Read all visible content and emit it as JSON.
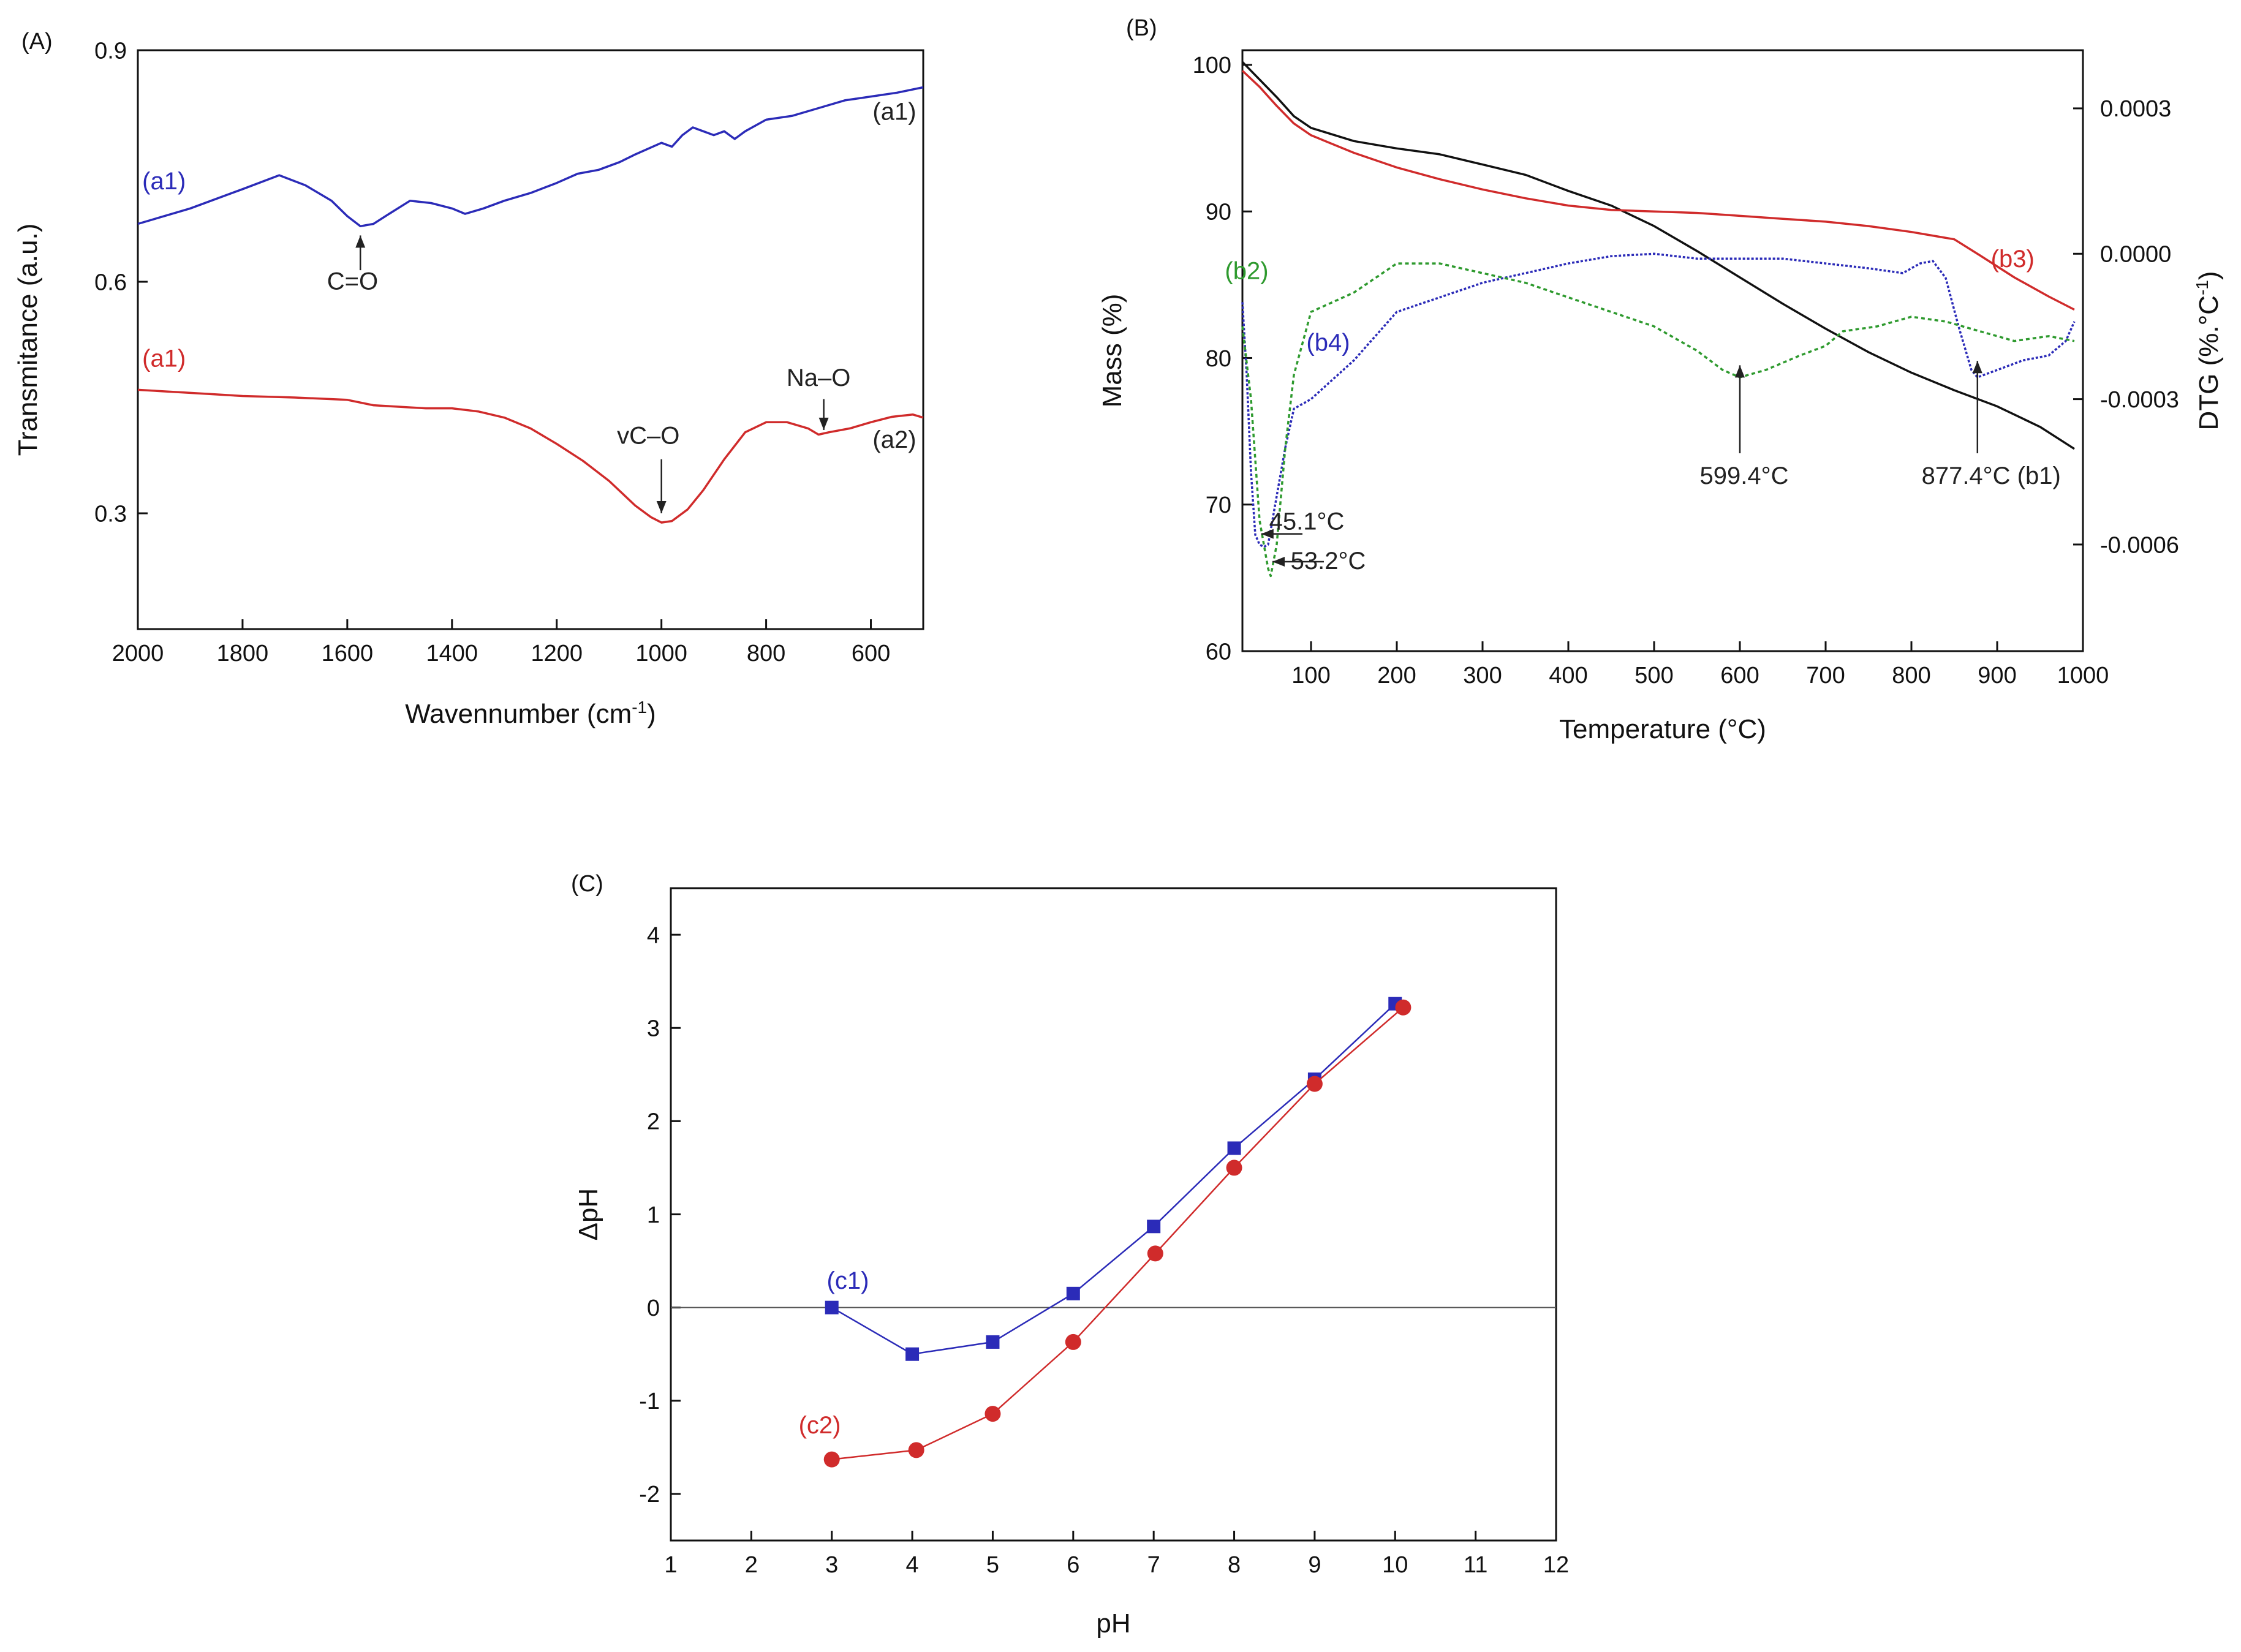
{
  "chart_data": [
    {
      "panel": "(A)",
      "type": "line",
      "title": "",
      "xlabel": "Wavennumber (cm",
      "xlabel_sup": "-1",
      "xlabel_end": ")",
      "ylabel": "Transmitance (a.u.)",
      "xlim": [
        2000,
        500
      ],
      "ylim": [
        0.15,
        0.9
      ],
      "xticks": [
        2000,
        1800,
        1600,
        1400,
        1200,
        1000,
        800,
        600
      ],
      "yticks": [
        0.3,
        0.6,
        0.9
      ],
      "ytick_labels": [
        "0.3",
        "0.6",
        "0.9"
      ],
      "grid": false,
      "series": [
        {
          "name": "a1-blue",
          "color": "#2b2bb8",
          "points": [
            [
              2000,
              0.675
            ],
            [
              1900,
              0.695
            ],
            [
              1800,
              0.72
            ],
            [
              1730,
              0.738
            ],
            [
              1680,
              0.725
            ],
            [
              1630,
              0.705
            ],
            [
              1600,
              0.685
            ],
            [
              1575,
              0.672
            ],
            [
              1550,
              0.675
            ],
            [
              1520,
              0.688
            ],
            [
              1480,
              0.705
            ],
            [
              1440,
              0.702
            ],
            [
              1400,
              0.695
            ],
            [
              1375,
              0.688
            ],
            [
              1340,
              0.695
            ],
            [
              1300,
              0.705
            ],
            [
              1250,
              0.715
            ],
            [
              1200,
              0.728
            ],
            [
              1160,
              0.74
            ],
            [
              1120,
              0.745
            ],
            [
              1080,
              0.755
            ],
            [
              1050,
              0.765
            ],
            [
              1000,
              0.78
            ],
            [
              980,
              0.775
            ],
            [
              960,
              0.79
            ],
            [
              940,
              0.8
            ],
            [
              920,
              0.795
            ],
            [
              900,
              0.79
            ],
            [
              880,
              0.795
            ],
            [
              860,
              0.785
            ],
            [
              840,
              0.795
            ],
            [
              800,
              0.81
            ],
            [
              750,
              0.815
            ],
            [
              700,
              0.825
            ],
            [
              650,
              0.835
            ],
            [
              600,
              0.84
            ],
            [
              550,
              0.845
            ],
            [
              500,
              0.852
            ]
          ]
        },
        {
          "name": "a2-red",
          "color": "#d02b2b",
          "points": [
            [
              2000,
              0.46
            ],
            [
              1900,
              0.456
            ],
            [
              1800,
              0.452
            ],
            [
              1700,
              0.45
            ],
            [
              1600,
              0.447
            ],
            [
              1550,
              0.44
            ],
            [
              1500,
              0.438
            ],
            [
              1450,
              0.436
            ],
            [
              1400,
              0.436
            ],
            [
              1350,
              0.432
            ],
            [
              1300,
              0.424
            ],
            [
              1250,
              0.41
            ],
            [
              1200,
              0.39
            ],
            [
              1150,
              0.368
            ],
            [
              1100,
              0.342
            ],
            [
              1050,
              0.31
            ],
            [
              1020,
              0.295
            ],
            [
              1000,
              0.288
            ],
            [
              980,
              0.29
            ],
            [
              950,
              0.305
            ],
            [
              920,
              0.33
            ],
            [
              880,
              0.37
            ],
            [
              840,
              0.405
            ],
            [
              800,
              0.418
            ],
            [
              760,
              0.418
            ],
            [
              720,
              0.41
            ],
            [
              700,
              0.402
            ],
            [
              680,
              0.405
            ],
            [
              640,
              0.41
            ],
            [
              600,
              0.418
            ],
            [
              560,
              0.425
            ],
            [
              520,
              0.428
            ],
            [
              500,
              0.424
            ]
          ]
        }
      ],
      "annotations": [
        {
          "id": "a1-blue-left",
          "text": "(a1)",
          "color": "#2b2bb8",
          "x": 1950,
          "y": 0.72
        },
        {
          "id": "a1-blue-right",
          "text": "(a1)",
          "color": "#222222",
          "x": 555,
          "y": 0.81
        },
        {
          "id": "a1-red-left",
          "text": "(a1)",
          "color": "#d02b2b",
          "x": 1950,
          "y": 0.49
        },
        {
          "id": "a2-red-right",
          "text": "(a2)",
          "color": "#222222",
          "x": 555,
          "y": 0.385
        },
        {
          "id": "c-o",
          "text": "C=O",
          "color": "#222222",
          "x": 1590,
          "y": 0.59
        },
        {
          "id": "vc-o",
          "text": "vC–O",
          "color": "#222222",
          "x": 1025,
          "y": 0.39
        },
        {
          "id": "na-o",
          "text": "Na–O",
          "color": "#222222",
          "x": 700,
          "y": 0.465
        }
      ],
      "arrows": [
        {
          "id": "arrow-c-o",
          "x": 1575,
          "y_from": 0.615,
          "y_to": 0.66
        },
        {
          "id": "arrow-vc-o",
          "x": 1000,
          "y_from": 0.37,
          "y_to": 0.3
        },
        {
          "id": "arrow-na-o",
          "x": 690,
          "y_from": 0.448,
          "y_to": 0.408
        }
      ]
    },
    {
      "panel": "(B)",
      "type": "line",
      "title": "",
      "xlabel": "Temperature (°C)",
      "ylabel": "Mass (%)",
      "y2label": "DTG (%.°C",
      "y2label_sup": "-1",
      "y2label_end": ")",
      "xlim": [
        20,
        1000
      ],
      "ylim": [
        60,
        101
      ],
      "y2lim": [
        -0.00082,
        0.00042
      ],
      "xticks": [
        100,
        200,
        300,
        400,
        500,
        600,
        700,
        800,
        900,
        1000
      ],
      "yticks": [
        60,
        70,
        80,
        90,
        100
      ],
      "y2ticks": [
        -0.0006,
        -0.0003,
        0.0,
        0.0003
      ],
      "y2tick_labels": [
        "-0.0006",
        "-0.0003",
        "0.0000",
        "0.0003"
      ],
      "grid": false,
      "series": [
        {
          "name": "b1-mass-black",
          "axis": "left",
          "color": "#111111",
          "dash": "",
          "points": [
            [
              20,
              100.2
            ],
            [
              40,
              99
            ],
            [
              60,
              97.8
            ],
            [
              80,
              96.5
            ],
            [
              100,
              95.7
            ],
            [
              150,
              94.8
            ],
            [
              200,
              94.3
            ],
            [
              250,
              93.9
            ],
            [
              300,
              93.2
            ],
            [
              350,
              92.5
            ],
            [
              400,
              91.4
            ],
            [
              450,
              90.4
            ],
            [
              500,
              89.0
            ],
            [
              550,
              87.3
            ],
            [
              600,
              85.5
            ],
            [
              650,
              83.7
            ],
            [
              700,
              82.0
            ],
            [
              750,
              80.4
            ],
            [
              800,
              79.0
            ],
            [
              850,
              77.8
            ],
            [
              900,
              76.7
            ],
            [
              950,
              75.3
            ],
            [
              990,
              73.8
            ]
          ]
        },
        {
          "name": "b3-mass-red",
          "axis": "left",
          "color": "#d02b2b",
          "dash": "",
          "points": [
            [
              20,
              99.6
            ],
            [
              40,
              98.5
            ],
            [
              60,
              97.2
            ],
            [
              80,
              96.0
            ],
            [
              100,
              95.2
            ],
            [
              150,
              94.0
            ],
            [
              200,
              93.0
            ],
            [
              250,
              92.2
            ],
            [
              300,
              91.5
            ],
            [
              350,
              90.9
            ],
            [
              400,
              90.4
            ],
            [
              450,
              90.1
            ],
            [
              500,
              90.0
            ],
            [
              550,
              89.9
            ],
            [
              600,
              89.7
            ],
            [
              650,
              89.5
            ],
            [
              700,
              89.3
            ],
            [
              750,
              89.0
            ],
            [
              800,
              88.6
            ],
            [
              850,
              88.1
            ],
            [
              880,
              87.0
            ],
            [
              920,
              85.5
            ],
            [
              960,
              84.2
            ],
            [
              990,
              83.3
            ]
          ]
        },
        {
          "name": "b4-dtg-blue",
          "axis": "right",
          "color": "#2b2bb8",
          "dash": "4,3",
          "points": [
            [
              20,
              -0.0001
            ],
            [
              25,
              -0.00025
            ],
            [
              30,
              -0.00045
            ],
            [
              35,
              -0.00058
            ],
            [
              40,
              -0.0006
            ],
            [
              45,
              -0.000605
            ],
            [
              50,
              -0.0006
            ],
            [
              60,
              -0.0005
            ],
            [
              70,
              -0.0004
            ],
            [
              80,
              -0.00032
            ],
            [
              100,
              -0.0003
            ],
            [
              150,
              -0.00022
            ],
            [
              200,
              -0.00012
            ],
            [
              250,
              -9e-05
            ],
            [
              300,
              -6e-05
            ],
            [
              350,
              -4e-05
            ],
            [
              400,
              -2e-05
            ],
            [
              450,
              -5e-06
            ],
            [
              500,
              0.0
            ],
            [
              550,
              -1e-05
            ],
            [
              600,
              -1e-05
            ],
            [
              650,
              -1e-05
            ],
            [
              700,
              -2e-05
            ],
            [
              750,
              -3e-05
            ],
            [
              790,
              -4e-05
            ],
            [
              810,
              -2e-05
            ],
            [
              825,
              -1.5e-05
            ],
            [
              840,
              -5e-05
            ],
            [
              855,
              -0.00015
            ],
            [
              870,
              -0.00024
            ],
            [
              877,
              -0.000255
            ],
            [
              900,
              -0.00024
            ],
            [
              930,
              -0.00022
            ],
            [
              960,
              -0.00021
            ],
            [
              980,
              -0.00018
            ],
            [
              990,
              -0.00014
            ]
          ]
        },
        {
          "name": "b2-dtg-green",
          "axis": "right",
          "color": "#2e9a2e",
          "dash": "6,5",
          "points": [
            [
              20,
              -0.00015
            ],
            [
              30,
              -0.0003
            ],
            [
              40,
              -0.00055
            ],
            [
              50,
              -0.00065
            ],
            [
              53,
              -0.000665
            ],
            [
              60,
              -0.0006
            ],
            [
              70,
              -0.0004
            ],
            [
              80,
              -0.00025
            ],
            [
              100,
              -0.00012
            ],
            [
              150,
              -8e-05
            ],
            [
              200,
              -2e-05
            ],
            [
              250,
              -2e-05
            ],
            [
              300,
              -4e-05
            ],
            [
              350,
              -6e-05
            ],
            [
              400,
              -9e-05
            ],
            [
              450,
              -0.00012
            ],
            [
              500,
              -0.00015
            ],
            [
              550,
              -0.0002
            ],
            [
              580,
              -0.00024
            ],
            [
              600,
              -0.000255
            ],
            [
              630,
              -0.00024
            ],
            [
              670,
              -0.00021
            ],
            [
              700,
              -0.00019
            ],
            [
              720,
              -0.00016
            ],
            [
              760,
              -0.00015
            ],
            [
              800,
              -0.00013
            ],
            [
              840,
              -0.00014
            ],
            [
              880,
              -0.00016
            ],
            [
              920,
              -0.00018
            ],
            [
              960,
              -0.00017
            ],
            [
              990,
              -0.00018
            ]
          ]
        }
      ],
      "annotations": [
        {
          "id": "b2-label",
          "text": "(b2)",
          "color": "#2e9a2e",
          "x": 25,
          "y": 85.4
        },
        {
          "id": "b4-label",
          "text": "(b4)",
          "color": "#2b2bb8",
          "x": 120,
          "y": 80.5
        },
        {
          "id": "b3-label",
          "text": "(b3)",
          "color": "#d02b2b",
          "x": 918,
          "y": 86.2
        },
        {
          "id": "t-45",
          "text": "45.1°C",
          "color": "#222222",
          "x": 95,
          "y": 68.3
        },
        {
          "id": "t-53",
          "text": "53.2°C",
          "color": "#222222",
          "x": 120,
          "y": 65.6
        },
        {
          "id": "t-599",
          "text": "599.4°C",
          "color": "#222222",
          "x": 605,
          "y": 71.4
        },
        {
          "id": "t-877",
          "text": "877.4°C  (b1)",
          "color": "#222222",
          "x": 893,
          "y": 71.4
        }
      ],
      "arrows": [
        {
          "id": "arrow-599",
          "x": 600,
          "y_from": 73.5,
          "y_to": 79.5
        },
        {
          "id": "arrow-877",
          "x": 877,
          "y_from": 73.5,
          "y_to": 79.8
        },
        {
          "id": "arrow-45",
          "x_from": 90,
          "x_to": 42,
          "y": 68.0
        },
        {
          "id": "arrow-53",
          "x_from": 115,
          "x_to": 55,
          "y": 66.1
        }
      ]
    },
    {
      "panel": "(C)",
      "type": "line",
      "title": "",
      "xlabel": "pH",
      "ylabel": "ΔpH",
      "xlim": [
        1,
        12
      ],
      "ylim": [
        -2.5,
        4.5
      ],
      "xticks": [
        1,
        2,
        3,
        4,
        5,
        6,
        7,
        8,
        9,
        10,
        11,
        12
      ],
      "yticks": [
        -2,
        -1,
        0,
        1,
        2,
        3,
        4
      ],
      "grid": false,
      "zero_line": true,
      "series": [
        {
          "name": "c1-blue",
          "color": "#2b2bb8",
          "marker": "square",
          "x": [
            3,
            4,
            5,
            6,
            7,
            8,
            9,
            10
          ],
          "y": [
            0.0,
            -0.5,
            -0.37,
            0.15,
            0.87,
            1.71,
            2.45,
            3.26
          ]
        },
        {
          "name": "c2-red",
          "color": "#d02b2b",
          "marker": "circle",
          "x": [
            3,
            4.05,
            5,
            6,
            7.02,
            8,
            9,
            10.1
          ],
          "y": [
            -1.63,
            -1.53,
            -1.14,
            -0.37,
            0.58,
            1.5,
            2.4,
            3.22
          ]
        }
      ],
      "annotations": [
        {
          "id": "c1-label",
          "text": "(c1)",
          "color": "#2b2bb8",
          "x": 3.2,
          "y": 0.2
        },
        {
          "id": "c2-label",
          "text": "(c2)",
          "color": "#d02b2b",
          "x": 2.85,
          "y": -1.35
        }
      ]
    }
  ]
}
